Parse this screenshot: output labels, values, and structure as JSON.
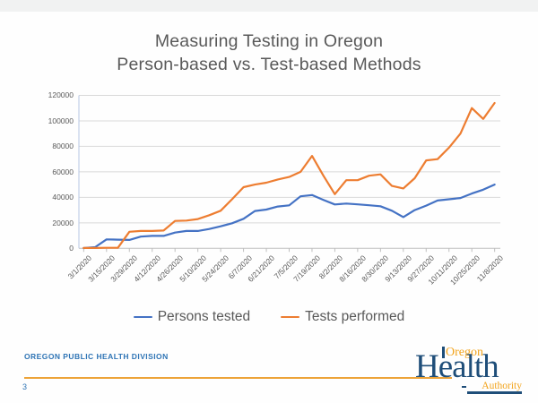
{
  "slide": {
    "title_line1": "Measuring Testing in Oregon",
    "title_line2": "Person-based vs. Test-based Methods",
    "footer": "OREGON PUBLIC HEALTH DIVISION",
    "page_number": "3",
    "logo": {
      "word_top": "Oregon",
      "word_main": "Health",
      "word_bottom": "Authority"
    }
  },
  "colors": {
    "persons_line": "#4472C4",
    "tests_line": "#ED7D31",
    "gridline": "#D9D9D9",
    "axis_line": "#BFBFBF",
    "y_axis_line": "#B7C7E4",
    "text_gray": "#595959",
    "footer_blue": "#2E74B5",
    "rule_orange": "#EDA338",
    "logo_navy": "#1F4E79",
    "logo_gold": "#F2A31B"
  },
  "chart_data": {
    "type": "line",
    "title": "",
    "xlabel": "",
    "ylabel": "",
    "ylim": [
      0,
      120000
    ],
    "ytick_step": 20000,
    "ytick_labels": [
      "0",
      "20000",
      "40000",
      "60000",
      "80000",
      "100000",
      "120000"
    ],
    "grid": true,
    "legend_position": "bottom",
    "x": [
      "3/1/2020",
      "3/8/2020",
      "3/15/2020",
      "3/22/2020",
      "3/29/2020",
      "4/5/2020",
      "4/12/2020",
      "4/19/2020",
      "4/26/2020",
      "5/3/2020",
      "5/10/2020",
      "5/17/2020",
      "5/24/2020",
      "5/31/2020",
      "6/7/2020",
      "6/14/2020",
      "6/21/2020",
      "6/28/2020",
      "7/5/2020",
      "7/12/2020",
      "7/19/2020",
      "7/26/2020",
      "8/2/2020",
      "8/9/2020",
      "8/16/2020",
      "8/23/2020",
      "8/30/2020",
      "9/6/2020",
      "9/13/2020",
      "9/20/2020",
      "9/27/2020",
      "10/4/2020",
      "10/11/2020",
      "10/18/2020",
      "10/25/2020",
      "11/1/2020",
      "11/8/2020"
    ],
    "x_axis_shown_labels": [
      "3/1/2020",
      "3/15/2020",
      "3/29/2020",
      "4/12/2020",
      "4/26/2020",
      "5/10/2020",
      "5/24/2020",
      "6/7/2020",
      "6/21/2020",
      "7/5/2020",
      "7/19/2020",
      "8/2/2020",
      "8/16/2020",
      "8/30/2020",
      "9/13/2020",
      "9/27/2020",
      "10/11/2020",
      "10/25/2020",
      "11/8/2020"
    ],
    "series": [
      {
        "name": "Persons tested",
        "color": "#4472C4",
        "values": [
          200,
          900,
          7000,
          6800,
          6600,
          9200,
          9800,
          9800,
          12400,
          13600,
          13600,
          15200,
          17300,
          19700,
          23200,
          29300,
          30400,
          32800,
          33700,
          40800,
          41800,
          38000,
          34400,
          35100,
          34500,
          33800,
          33000,
          29500,
          24500,
          30000,
          33500,
          37500,
          38500,
          39500,
          43000,
          46000,
          50000
        ]
      },
      {
        "name": "Tests performed",
        "color": "#ED7D31",
        "values": [
          300,
          300,
          400,
          400,
          13000,
          13600,
          13600,
          14000,
          21500,
          21800,
          23000,
          26000,
          29500,
          38500,
          48000,
          50000,
          51500,
          54000,
          56000,
          60000,
          72500,
          57000,
          42500,
          53500,
          53500,
          57000,
          58000,
          49000,
          47000,
          55000,
          69000,
          70000,
          79000,
          90000,
          110000,
          101500,
          114000
        ]
      }
    ]
  }
}
